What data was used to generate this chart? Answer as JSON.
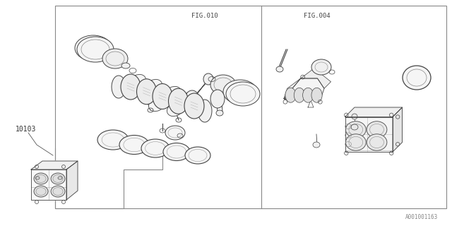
{
  "bg_color": "#ffffff",
  "border_color": "#444444",
  "line_color": "#444444",
  "fig_width": 6.4,
  "fig_height": 3.2,
  "dpi": 100,
  "fig010_label": "FIG.010",
  "fig004_label": "FIG.004",
  "part_label": "10103",
  "catalog_number": "A001001163"
}
